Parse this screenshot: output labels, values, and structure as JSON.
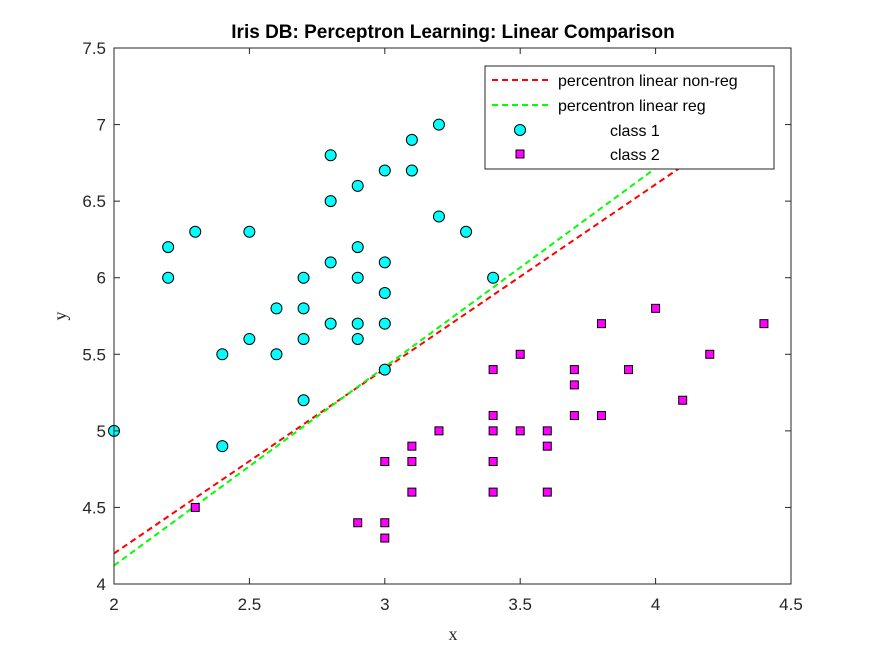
{
  "chart_data": {
    "type": "scatter",
    "title": "Iris DB: Perceptron Learning: Linear Comparison",
    "xlabel": "x",
    "ylabel": "y",
    "xlim": [
      2,
      4.5
    ],
    "ylim": [
      4,
      7.5
    ],
    "x_ticks": [
      "2",
      "2.5",
      "3",
      "3.5",
      "4",
      "4.5"
    ],
    "y_ticks": [
      "4",
      "4.5",
      "5",
      "5.5",
      "6",
      "6.5",
      "7",
      "7.5"
    ],
    "grid": false,
    "legend_position": "top-right",
    "lines": [
      {
        "name": "percentron linear non-reg",
        "color": "#ff0000",
        "dash": "dashed",
        "x": [
          2,
          4.1
        ],
        "y": [
          4.2,
          6.73
        ]
      },
      {
        "name": "percentron linear reg",
        "color": "#00ff00",
        "dash": "dashed",
        "x": [
          2,
          4.05
        ],
        "y": [
          4.12,
          6.78
        ]
      }
    ],
    "series": [
      {
        "name": "class 1",
        "marker": "circle",
        "color": "#00ffff",
        "points": [
          [
            2.0,
            5.0
          ],
          [
            2.2,
            6.0
          ],
          [
            2.2,
            6.2
          ],
          [
            2.3,
            6.3
          ],
          [
            2.4,
            5.5
          ],
          [
            2.4,
            4.9
          ],
          [
            2.5,
            6.3
          ],
          [
            2.5,
            5.6
          ],
          [
            2.6,
            5.8
          ],
          [
            2.6,
            5.5
          ],
          [
            2.7,
            6.0
          ],
          [
            2.7,
            5.8
          ],
          [
            2.7,
            5.6
          ],
          [
            2.7,
            5.2
          ],
          [
            2.8,
            6.8
          ],
          [
            2.8,
            6.5
          ],
          [
            2.8,
            6.1
          ],
          [
            2.8,
            5.7
          ],
          [
            2.9,
            6.6
          ],
          [
            2.9,
            6.2
          ],
          [
            2.9,
            6.0
          ],
          [
            2.9,
            5.7
          ],
          [
            2.9,
            5.6
          ],
          [
            3.0,
            6.7
          ],
          [
            3.0,
            6.1
          ],
          [
            3.0,
            5.9
          ],
          [
            3.0,
            5.7
          ],
          [
            3.0,
            5.4
          ],
          [
            3.1,
            6.9
          ],
          [
            3.1,
            6.7
          ],
          [
            3.2,
            7.0
          ],
          [
            3.2,
            6.4
          ],
          [
            3.3,
            6.3
          ],
          [
            3.4,
            6.0
          ]
        ]
      },
      {
        "name": "class 2",
        "marker": "square",
        "color": "#ff00ff",
        "points": [
          [
            2.3,
            4.5
          ],
          [
            2.9,
            4.4
          ],
          [
            3.0,
            4.8
          ],
          [
            3.0,
            4.4
          ],
          [
            3.0,
            4.3
          ],
          [
            3.1,
            4.9
          ],
          [
            3.1,
            4.8
          ],
          [
            3.1,
            4.6
          ],
          [
            3.2,
            5.0
          ],
          [
            3.4,
            5.4
          ],
          [
            3.4,
            5.1
          ],
          [
            3.4,
            5.0
          ],
          [
            3.4,
            4.8
          ],
          [
            3.4,
            4.6
          ],
          [
            3.5,
            5.5
          ],
          [
            3.5,
            5.0
          ],
          [
            3.6,
            5.0
          ],
          [
            3.6,
            4.9
          ],
          [
            3.6,
            4.6
          ],
          [
            3.7,
            5.4
          ],
          [
            3.7,
            5.3
          ],
          [
            3.7,
            5.1
          ],
          [
            3.8,
            5.7
          ],
          [
            3.8,
            5.1
          ],
          [
            3.9,
            5.4
          ],
          [
            4.0,
            5.8
          ],
          [
            4.1,
            5.2
          ],
          [
            4.2,
            5.5
          ],
          [
            4.4,
            5.7
          ]
        ]
      }
    ]
  }
}
